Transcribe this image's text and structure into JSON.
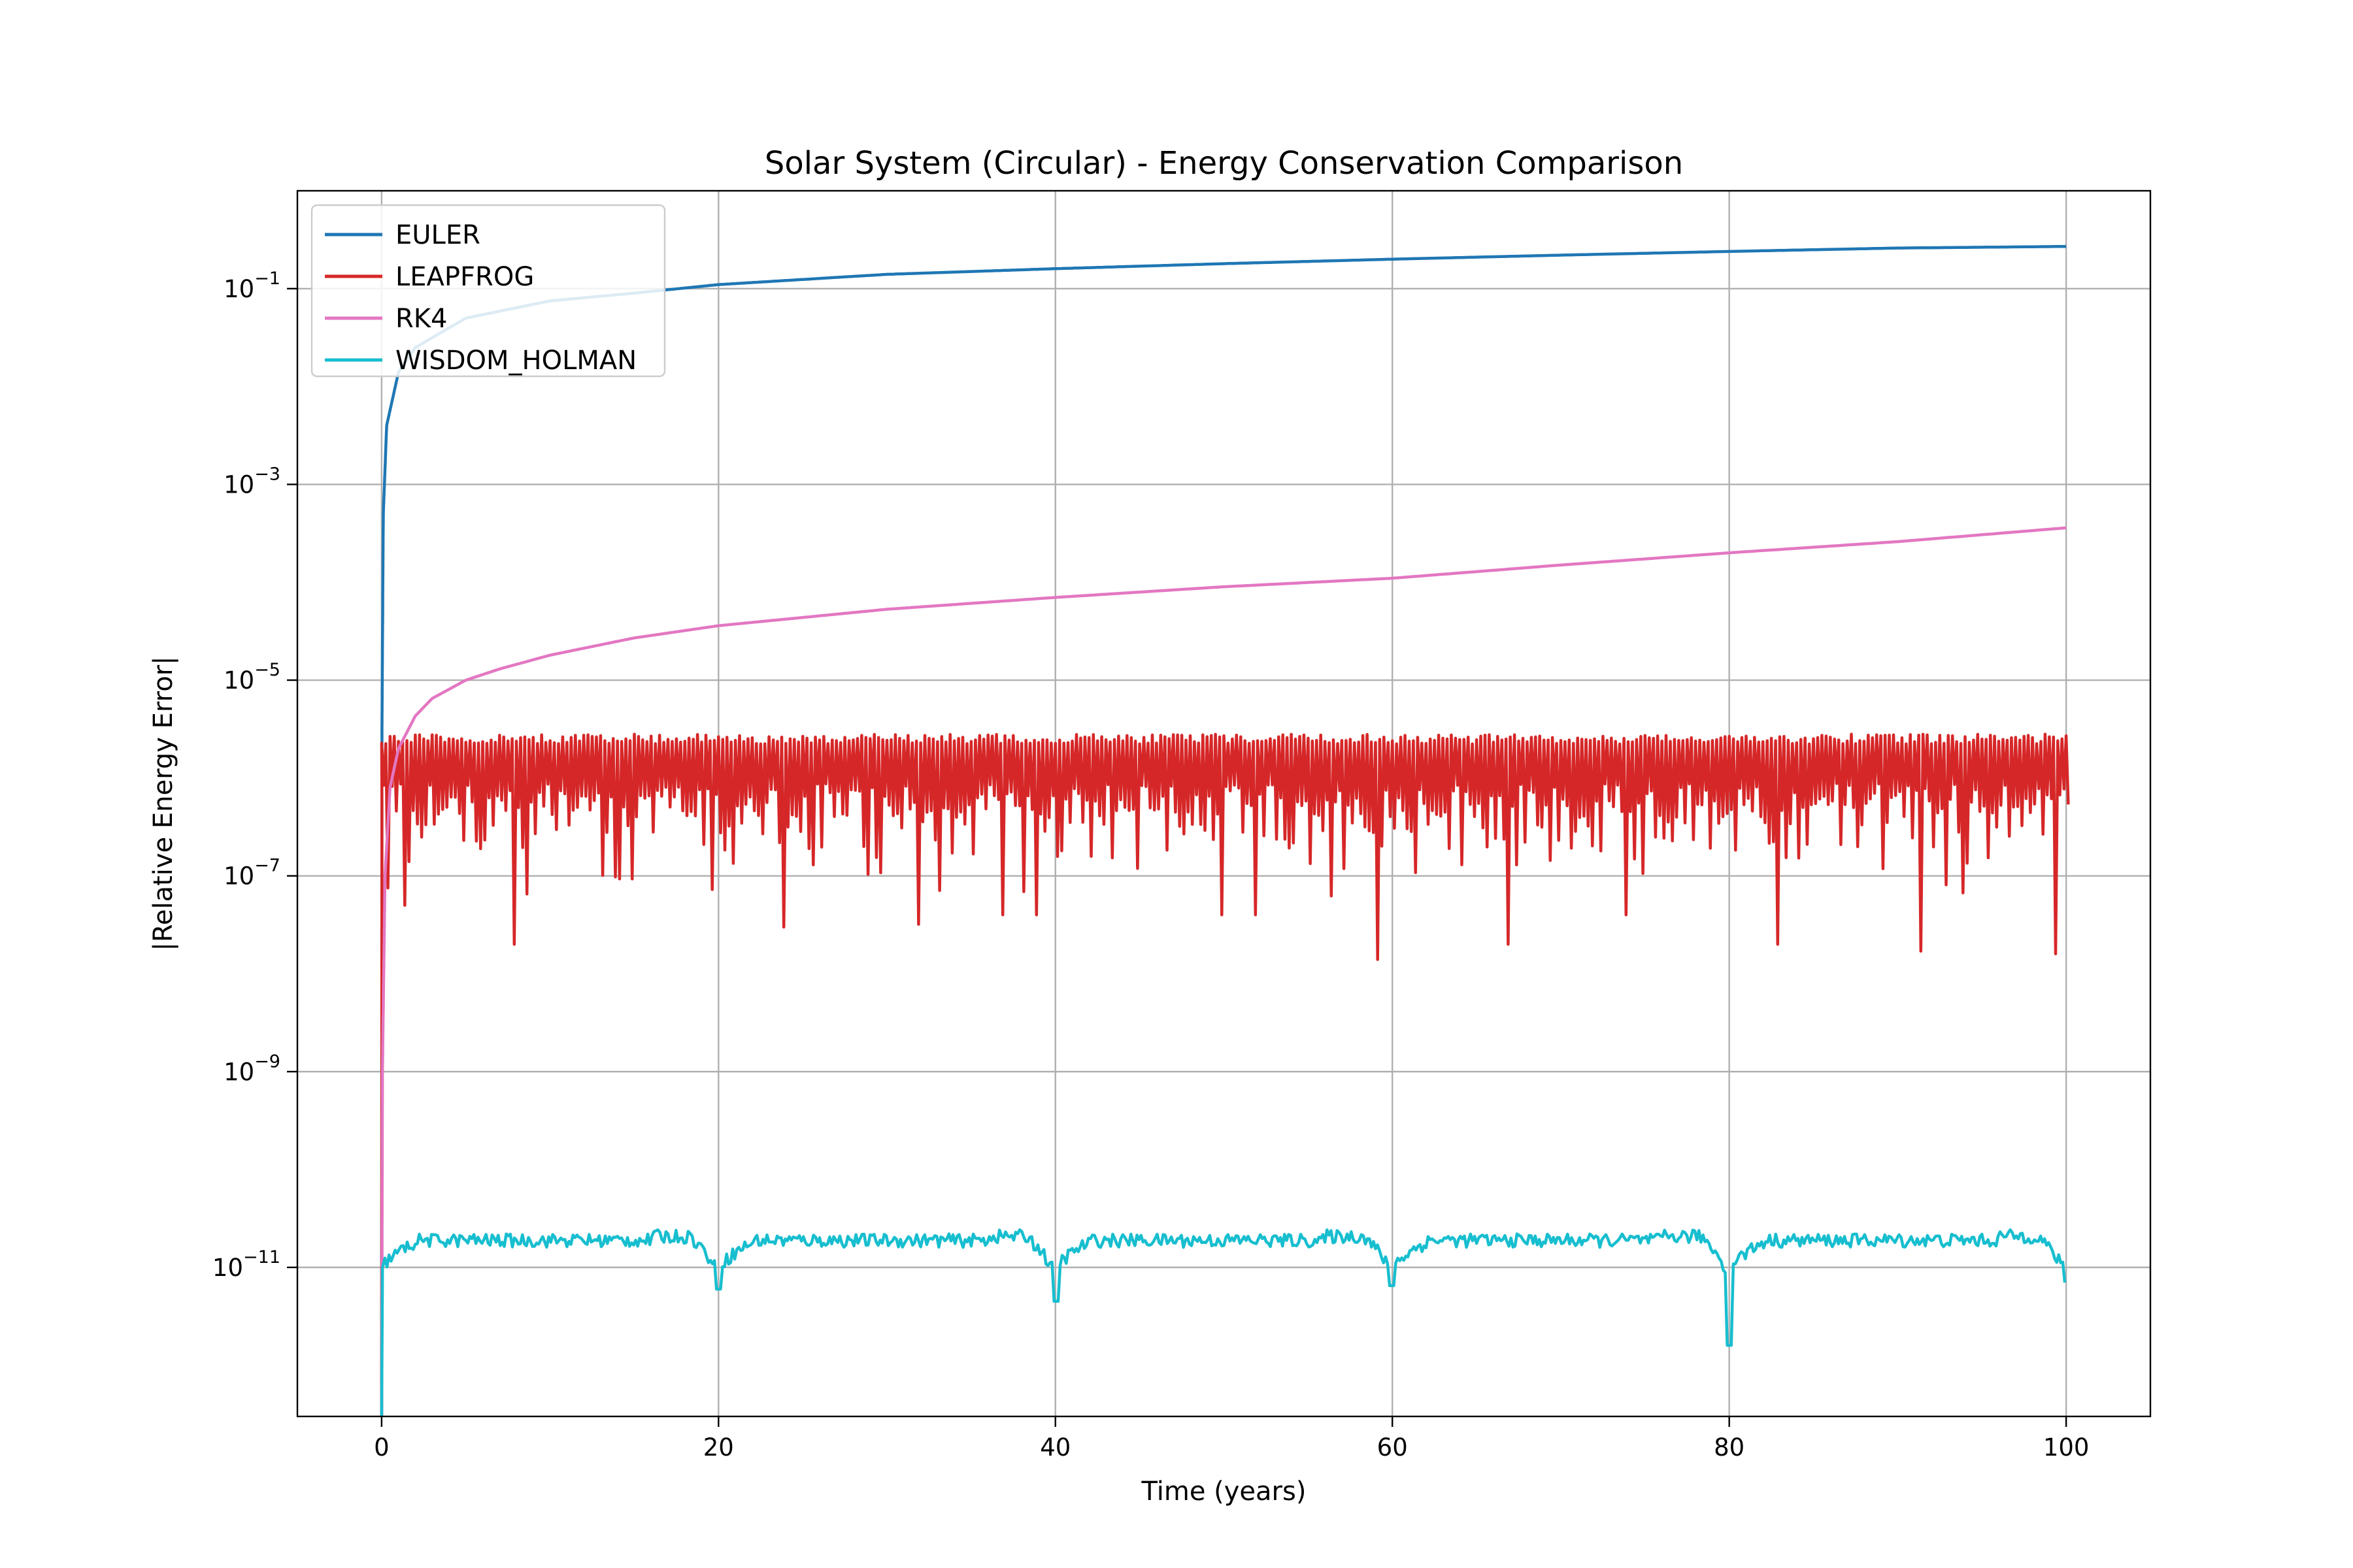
{
  "chart_data": {
    "type": "line",
    "title": "Solar System (Circular) - Energy Conservation Comparison",
    "xlabel": "Time (years)",
    "ylabel": "|Relative Energy Error|",
    "xlim": [
      -5,
      105
    ],
    "ylim": [
      3e-13,
      1.0
    ],
    "yscale": "log",
    "grid": true,
    "legend_position": "upper left",
    "x_ticks": [
      0,
      20,
      40,
      60,
      80,
      100
    ],
    "y_ticks": [
      {
        "value": 0.1,
        "base": "10",
        "exp": "−1"
      },
      {
        "value": 0.001,
        "base": "10",
        "exp": "−3"
      },
      {
        "value": 1e-05,
        "base": "10",
        "exp": "−5"
      },
      {
        "value": 1e-07,
        "base": "10",
        "exp": "−7"
      },
      {
        "value": 1e-09,
        "base": "10",
        "exp": "−9"
      },
      {
        "value": 1e-11,
        "base": "10",
        "exp": "−11"
      }
    ],
    "series": [
      {
        "name": "EULER",
        "color": "#1f77b4",
        "x": [
          0,
          0.02,
          0.1,
          0.3,
          1,
          2,
          5,
          10,
          15,
          20,
          30,
          40,
          50,
          60,
          70,
          80,
          90,
          100
        ],
        "y": [
          1e-13,
          3e-06,
          0.0005,
          0.004,
          0.014,
          0.025,
          0.05,
          0.075,
          0.09,
          0.11,
          0.14,
          0.16,
          0.18,
          0.2,
          0.22,
          0.24,
          0.26,
          0.27
        ]
      },
      {
        "name": "LEAPFROG",
        "color": "#d62728",
        "pattern": "oscillating",
        "x_start": 0,
        "x_end": 100,
        "band_upper": 2.5e-06,
        "band_lower": 5e-07,
        "spike_min_x": [
          1.4,
          8,
          24,
          32,
          37,
          39,
          50,
          52,
          59.3,
          67,
          74,
          83,
          91.5,
          99.5
        ],
        "spike_min_y": [
          5e-08,
          2e-08,
          3e-08,
          3.2e-08,
          4e-08,
          4e-08,
          4e-08,
          4e-08,
          1.4e-08,
          2e-08,
          4e-08,
          2e-08,
          1.7e-08,
          1.6e-08
        ]
      },
      {
        "name": "RK4",
        "color": "#e377c2",
        "x": [
          0,
          0.05,
          0.2,
          0.5,
          1,
          2,
          3,
          5,
          7,
          10,
          15,
          20,
          30,
          40,
          50,
          60,
          70,
          80,
          90,
          100
        ],
        "y": [
          1e-13,
          1e-09,
          1e-07,
          8e-07,
          2e-06,
          4.3e-06,
          6.5e-06,
          1e-05,
          1.3e-05,
          1.8e-05,
          2.7e-05,
          3.6e-05,
          5.3e-05,
          7e-05,
          9e-05,
          0.00011,
          0.00015,
          0.0002,
          0.00026,
          0.00036
        ]
      },
      {
        "name": "WISDOM_HOLMAN",
        "color": "#17becf",
        "pattern": "periodic",
        "x_start": 0,
        "x_end": 100,
        "baseline": 1.9e-11,
        "ripple": 3e-12,
        "period": 20,
        "dip_x": [
          20,
          40,
          60,
          80,
          100
        ],
        "dip_y": [
          6e-12,
          4.5e-12,
          6.5e-12,
          1.6e-12,
          7e-12
        ]
      }
    ]
  }
}
